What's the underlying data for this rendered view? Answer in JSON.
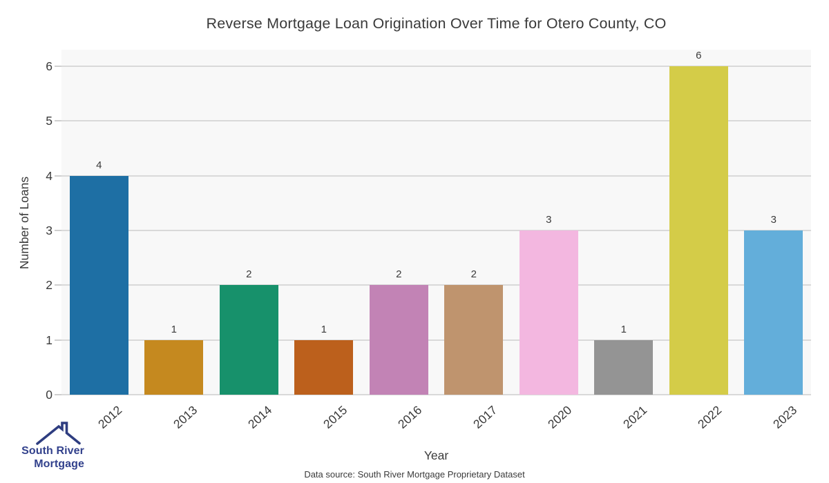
{
  "chart_data": {
    "type": "bar",
    "title": "Reverse Mortgage Loan Origination Over Time for Otero County, CO",
    "xlabel": "Year",
    "ylabel": "Number of Loans",
    "categories": [
      "2012",
      "2013",
      "2014",
      "2015",
      "2016",
      "2017",
      "2020",
      "2021",
      "2022",
      "2023"
    ],
    "values": [
      4,
      1,
      2,
      1,
      2,
      2,
      3,
      1,
      6,
      3
    ],
    "bar_colors": [
      "#1e6fa4",
      "#c5891f",
      "#17916b",
      "#bc601c",
      "#c283b5",
      "#bf946e",
      "#f3b7e0",
      "#949494",
      "#d4cc48",
      "#63aeda"
    ],
    "yticks": [
      0,
      1,
      2,
      3,
      4,
      5,
      6
    ],
    "ylim": [
      0,
      6.3
    ],
    "grid": "horizontal-only",
    "legend": "none",
    "plot_background": "#f8f8f8",
    "gridline_color": "#d9d9d9",
    "text_color": "#3a3a3a"
  },
  "footer": {
    "source_note": "Data source: South River Mortgage Proprietary Dataset"
  },
  "logo": {
    "line1": "South River",
    "line2": "Mortgage",
    "text_color": "#32418c",
    "roof_color": "#2e3d80"
  }
}
